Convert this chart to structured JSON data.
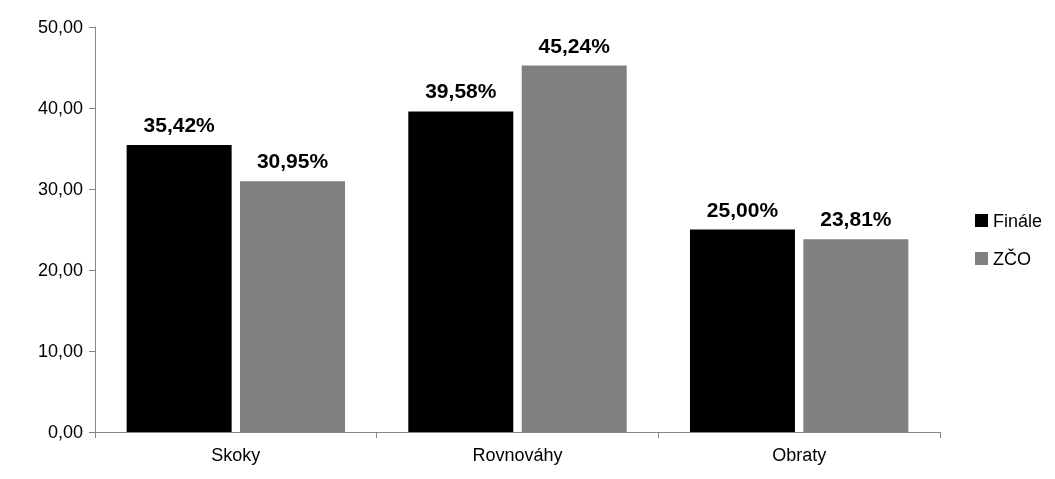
{
  "chart_data": {
    "type": "bar",
    "categories": [
      "Skoky",
      "Rovnováhy",
      "Obraty"
    ],
    "series": [
      {
        "name": "Finále",
        "color": "#000000",
        "values": [
          35.42,
          39.58,
          25.0
        ],
        "value_labels": [
          "35,42%",
          "39,58%",
          "25,00%"
        ]
      },
      {
        "name": "ZČO",
        "color": "#808080",
        "values": [
          30.95,
          45.24,
          23.81
        ],
        "value_labels": [
          "30,95%",
          "45,24%",
          "23,81%"
        ]
      }
    ],
    "ylim": [
      0,
      50
    ],
    "yticks": [
      {
        "value": 0,
        "label": "0,00"
      },
      {
        "value": 10,
        "label": "10,00"
      },
      {
        "value": 20,
        "label": "20,00"
      },
      {
        "value": 30,
        "label": "30,00"
      },
      {
        "value": 40,
        "label": "40,00"
      },
      {
        "value": 50,
        "label": "50,00"
      }
    ],
    "grid": false,
    "legend": "right"
  }
}
